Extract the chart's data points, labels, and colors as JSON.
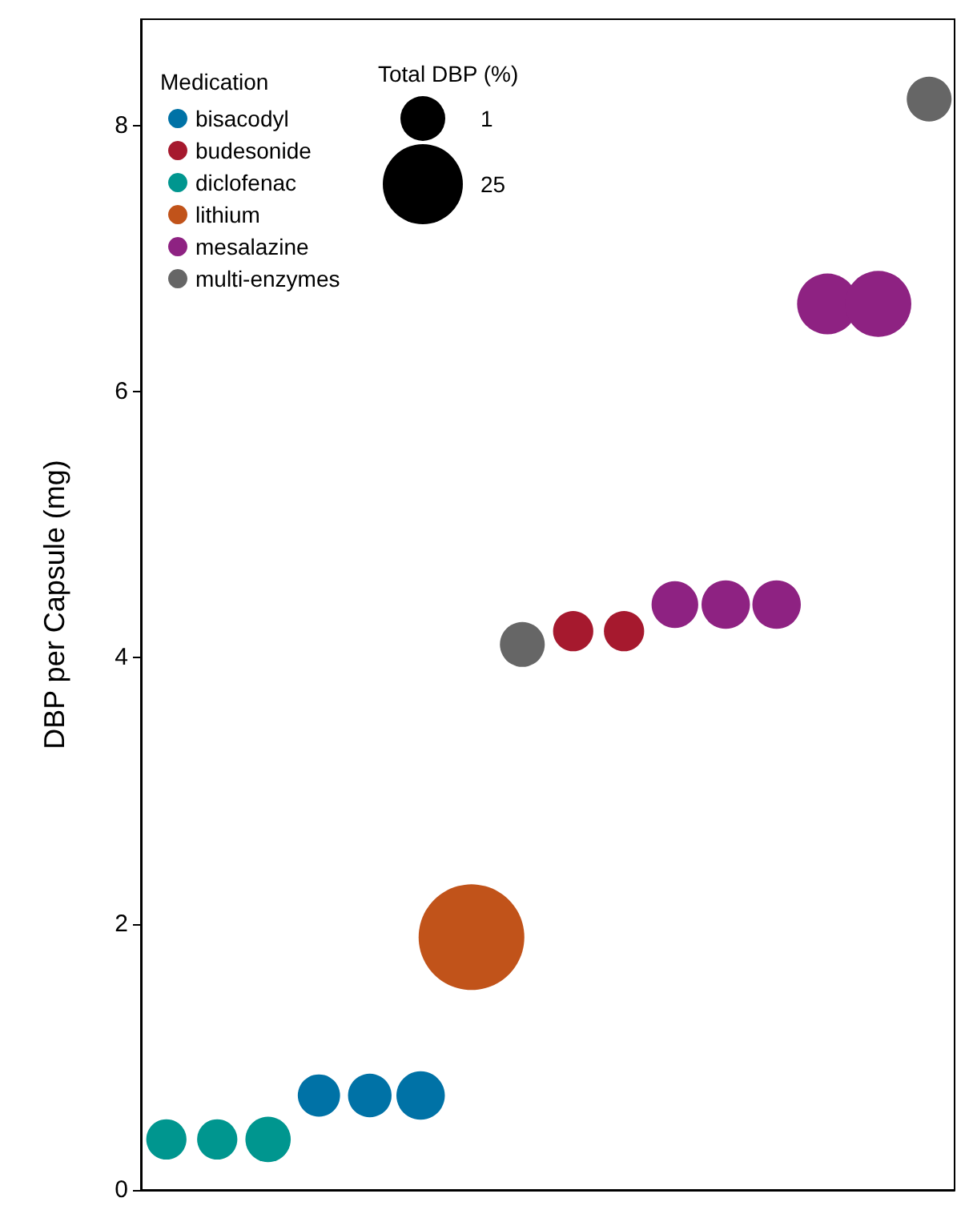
{
  "chart_data": {
    "type": "bubble",
    "ylabel": "DBP per Capsule (mg)",
    "legend_title": "Medication",
    "annotations": [
      "Total DBP (%)",
      "1",
      "25"
    ],
    "categories": [
      null,
      null,
      null,
      null,
      null,
      null,
      null,
      null,
      null,
      null,
      null,
      null,
      null,
      null,
      null,
      null
    ],
    "ylim": [
      0,
      8.8
    ],
    "yticks": [
      0,
      2,
      4,
      6,
      8
    ],
    "legend": "top left",
    "grid": false,
    "tick_labels": "y",
    "series": [
      {
        "name": "bisacodyl",
        "color": "#0072a6",
        "values": [
          null,
          null,
          null,
          0.71,
          0.71,
          0.71,
          null,
          null,
          null,
          null,
          null,
          null,
          null,
          null,
          null,
          null
        ],
        "sizes": [
          null,
          null,
          null,
          0.16,
          0.17,
          0.21,
          null,
          null,
          null,
          null,
          null,
          null,
          null,
          null,
          null,
          null
        ]
      },
      {
        "name": "budesonide",
        "color": "#a6192e",
        "values": [
          null,
          null,
          null,
          null,
          null,
          null,
          null,
          null,
          4.2,
          4.2,
          null,
          null,
          null,
          null,
          null,
          null
        ],
        "sizes": [
          null,
          null,
          null,
          null,
          null,
          null,
          null,
          null,
          0.145,
          0.145,
          null,
          null,
          null,
          null,
          null,
          null
        ]
      },
      {
        "name": "diclofenac",
        "color": "#00968f",
        "values": [
          0.38,
          0.38,
          0.38,
          null,
          null,
          null,
          null,
          null,
          null,
          null,
          null,
          null,
          null,
          null,
          null,
          null
        ],
        "sizes": [
          0.145,
          0.145,
          0.184,
          null,
          null,
          null,
          null,
          null,
          null,
          null,
          null,
          null,
          null,
          null,
          null,
          null
        ]
      },
      {
        "name": "lithium",
        "color": "#c1531a",
        "values": [
          null,
          null,
          null,
          null,
          null,
          null,
          1.9,
          null,
          null,
          null,
          null,
          null,
          null,
          null,
          null,
          null
        ],
        "sizes": [
          null,
          null,
          null,
          null,
          null,
          null,
          1,
          null,
          null,
          null,
          null,
          null,
          null,
          null,
          null,
          null
        ]
      },
      {
        "name": "mesalazine",
        "color": "#8e2282",
        "values": [
          null,
          null,
          null,
          null,
          null,
          null,
          null,
          null,
          null,
          null,
          4.4,
          4.4,
          4.4,
          6.66,
          6.66,
          null
        ],
        "sizes": [
          null,
          null,
          null,
          null,
          null,
          null,
          null,
          null,
          null,
          null,
          0.195,
          0.21,
          0.21,
          0.33,
          0.39,
          null
        ]
      },
      {
        "name": "multi-enzymes",
        "color": "#666666",
        "values": [
          null,
          null,
          null,
          null,
          null,
          null,
          null,
          4.1,
          null,
          null,
          null,
          null,
          null,
          null,
          null,
          8.2
        ],
        "sizes": [
          null,
          null,
          null,
          null,
          null,
          null,
          null,
          0.18,
          null,
          null,
          null,
          null,
          null,
          null,
          null,
          0.18
        ]
      }
    ]
  }
}
